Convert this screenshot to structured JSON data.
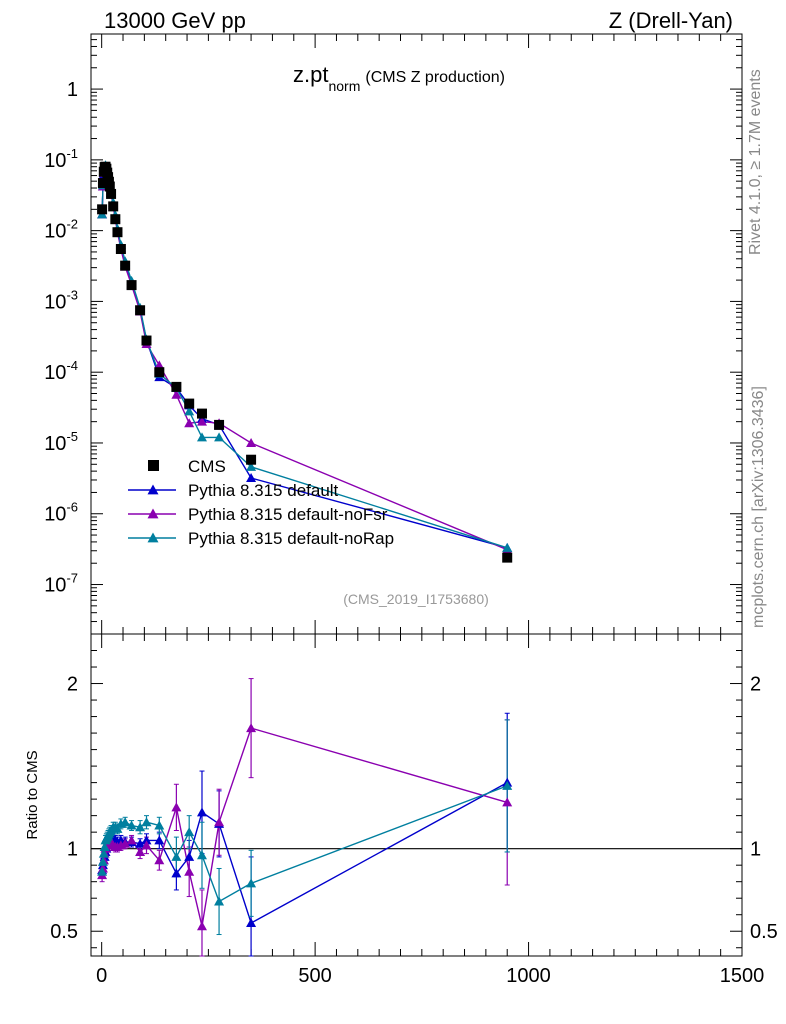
{
  "header": {
    "energy_label": "13000 GeV pp",
    "process_label": "Z (Drell-Yan)"
  },
  "side_labels": {
    "rivet": "Rivet 4.1.0, ≥ 1.7M events",
    "mcplots": "mcplots.cern.ch [arXiv:1306.3436]"
  },
  "plot_title": {
    "main": "z.pt",
    "subscript": "norm",
    "description": "(CMS Z production)"
  },
  "analysis_id": "(CMS_2019_I1753680)",
  "colors": {
    "cms": "#000000",
    "default": "#0000cc",
    "noFsr": "#8a00b0",
    "noRap": "#007f9f"
  },
  "chart_data": [
    {
      "type": "line",
      "name": "main",
      "yscale": "log",
      "xlim": [
        -25,
        1500
      ],
      "ylim": [
        2e-08,
        6
      ],
      "y_ticks": [
        {
          "v": 1e-07,
          "base": "10",
          "exp": "-7"
        },
        {
          "v": 1e-06,
          "base": "10",
          "exp": "-6"
        },
        {
          "v": 1e-05,
          "base": "10",
          "exp": "-5"
        },
        {
          "v": 0.0001,
          "base": "10",
          "exp": "-4"
        },
        {
          "v": 0.001,
          "base": "10",
          "exp": "-3"
        },
        {
          "v": 0.01,
          "base": "10",
          "exp": "-2"
        },
        {
          "v": 0.1,
          "base": "10",
          "exp": "-1"
        },
        {
          "v": 1,
          "base": "1",
          "exp": ""
        }
      ],
      "legend": [
        {
          "key": "cms",
          "label": "CMS",
          "marker": "square"
        },
        {
          "key": "default",
          "label": "Pythia 8.315 default",
          "marker": "triangle"
        },
        {
          "key": "noFsr",
          "label": "Pythia 8.315 default-noFsr",
          "marker": "triangle"
        },
        {
          "key": "noRap",
          "label": "Pythia 8.315 default-noRap",
          "marker": "triangle"
        }
      ],
      "x": [
        1,
        3,
        5,
        7,
        9,
        11,
        13,
        15,
        17,
        19,
        22,
        27,
        32,
        37,
        45,
        55,
        70,
        90,
        105,
        135,
        175,
        205,
        235,
        275,
        350,
        950
      ],
      "cms": [
        0.02,
        0.047,
        0.068,
        0.079,
        0.08,
        0.075,
        0.066,
        0.057,
        0.049,
        0.042,
        0.033,
        0.022,
        0.0145,
        0.0095,
        0.0055,
        0.0032,
        0.0017,
        0.00075,
        0.00028,
        0.0001,
        6.2e-05,
        3.6e-05,
        2.6e-05,
        1.8e-05,
        5.8e-06,
        2.4e-07
      ],
      "series": [
        {
          "key": "default",
          "values": [
            0.017,
            0.042,
            0.062,
            0.074,
            0.078,
            0.074,
            0.066,
            0.058,
            0.05,
            0.043,
            0.034,
            0.023,
            0.0152,
            0.0099,
            0.0057,
            0.0033,
            0.00175,
            0.00076,
            0.000283,
            8.5e-05,
            6e-05,
            3.4e-05,
            2.2e-05,
            1.8e-05,
            3.2e-06,
            3.3e-07
          ]
        },
        {
          "key": "noFsr",
          "values": [
            0.017,
            0.042,
            0.065,
            0.078,
            0.081,
            0.076,
            0.067,
            0.058,
            0.05,
            0.043,
            0.034,
            0.022,
            0.0146,
            0.0095,
            0.0055,
            0.0031,
            0.0017,
            0.00072,
            0.00025,
            0.000125,
            4.8e-05,
            1.9e-05,
            2e-05,
            1.9e-05,
            1e-05,
            3.1e-07
          ]
        },
        {
          "key": "noRap",
          "values": [
            0.017,
            0.044,
            0.066,
            0.08,
            0.084,
            0.079,
            0.07,
            0.061,
            0.053,
            0.046,
            0.037,
            0.025,
            0.0165,
            0.0106,
            0.0063,
            0.0037,
            0.00195,
            0.00081,
            0.00029,
            9.5e-05,
            6e-05,
            2.8e-05,
            1.2e-05,
            1.2e-05,
            4.6e-06,
            3.3e-07
          ]
        }
      ]
    },
    {
      "type": "line",
      "name": "ratio",
      "ylabel": "Ratio to CMS",
      "xlim": [
        -25,
        1500
      ],
      "ylim": [
        0.35,
        2.3
      ],
      "reference_line": 1,
      "y_ticks": [
        {
          "v": 0.5,
          "label": "0.5"
        },
        {
          "v": 1,
          "label": "1"
        },
        {
          "v": 2,
          "label": "2"
        }
      ],
      "x_ticks": [
        {
          "v": 0,
          "label": "0"
        },
        {
          "v": 500,
          "label": "500"
        },
        {
          "v": 1000,
          "label": "1000"
        },
        {
          "v": 1500,
          "label": "1500"
        }
      ],
      "x": [
        1,
        3,
        5,
        7,
        9,
        11,
        13,
        15,
        17,
        19,
        22,
        27,
        32,
        37,
        45,
        55,
        70,
        90,
        105,
        135,
        175,
        205,
        235,
        275,
        350,
        950
      ],
      "series": [
        {
          "key": "default",
          "values": [
            0.87,
            0.9,
            0.93,
            0.95,
            0.98,
            1.0,
            1.02,
            1.03,
            1.05,
            1.07,
            1.06,
            1.07,
            1.05,
            1.04,
            1.05,
            1.04,
            1.04,
            1.03,
            1.05,
            1.05,
            0.85,
            0.95,
            1.22,
            1.15,
            0.55,
            1.4
          ],
          "err": [
            0.04,
            0.04,
            0.03,
            0.03,
            0.03,
            0.03,
            0.03,
            0.03,
            0.03,
            0.03,
            0.03,
            0.03,
            0.03,
            0.03,
            0.03,
            0.03,
            0.03,
            0.03,
            0.04,
            0.05,
            0.1,
            0.1,
            0.25,
            0.2,
            0.4,
            0.42
          ]
        },
        {
          "key": "noFsr",
          "values": [
            0.84,
            0.88,
            0.93,
            0.97,
            1.0,
            1.02,
            1.02,
            1.03,
            1.02,
            1.03,
            1.04,
            1.02,
            1.01,
            1.01,
            1.02,
            1.03,
            1.05,
            0.98,
            1.02,
            0.93,
            1.25,
            0.86,
            0.53,
            1.16,
            1.73,
            1.28
          ],
          "err": [
            0.04,
            0.04,
            0.03,
            0.03,
            0.03,
            0.03,
            0.03,
            0.03,
            0.03,
            0.03,
            0.03,
            0.03,
            0.03,
            0.03,
            0.03,
            0.03,
            0.03,
            0.04,
            0.05,
            0.06,
            0.14,
            0.15,
            0.22,
            0.2,
            0.3,
            0.5
          ]
        },
        {
          "key": "noRap",
          "values": [
            0.86,
            0.92,
            0.97,
            1.01,
            1.05,
            1.06,
            1.07,
            1.08,
            1.09,
            1.1,
            1.11,
            1.13,
            1.13,
            1.12,
            1.15,
            1.16,
            1.14,
            1.13,
            1.16,
            1.14,
            0.95,
            1.1,
            0.96,
            0.68,
            0.79,
            1.38
          ],
          "err": [
            0.04,
            0.04,
            0.03,
            0.03,
            0.03,
            0.03,
            0.03,
            0.03,
            0.03,
            0.03,
            0.03,
            0.03,
            0.03,
            0.03,
            0.03,
            0.03,
            0.03,
            0.04,
            0.04,
            0.05,
            0.12,
            0.1,
            0.2,
            0.2,
            0.2,
            0.4
          ]
        }
      ]
    }
  ]
}
